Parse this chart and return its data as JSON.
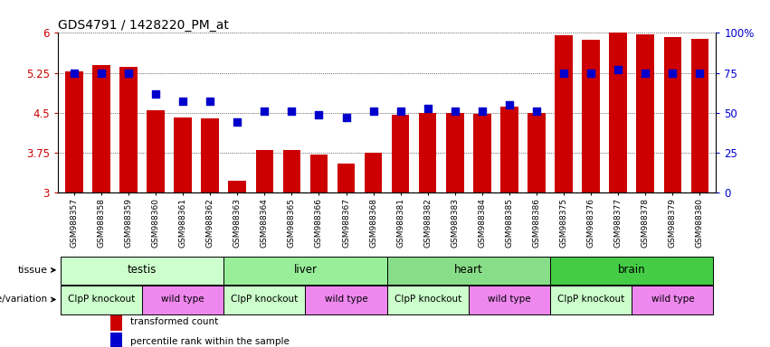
{
  "title": "GDS4791 / 1428220_PM_at",
  "samples": [
    "GSM988357",
    "GSM988358",
    "GSM988359",
    "GSM988360",
    "GSM988361",
    "GSM988362",
    "GSM988363",
    "GSM988364",
    "GSM988365",
    "GSM988366",
    "GSM988367",
    "GSM988368",
    "GSM988381",
    "GSM988382",
    "GSM988383",
    "GSM988384",
    "GSM988385",
    "GSM988386",
    "GSM988375",
    "GSM988376",
    "GSM988377",
    "GSM988378",
    "GSM988379",
    "GSM988380"
  ],
  "bar_values": [
    5.27,
    5.4,
    5.37,
    4.55,
    4.42,
    4.4,
    3.22,
    3.8,
    3.8,
    3.72,
    3.55,
    3.75,
    4.47,
    4.5,
    4.5,
    4.48,
    4.62,
    4.5,
    5.95,
    5.87,
    6.02,
    5.98,
    5.92,
    5.89
  ],
  "dot_values_pct": [
    75,
    75,
    75,
    62,
    57,
    57,
    44,
    51,
    51,
    49,
    47,
    51,
    51,
    53,
    51,
    51,
    55,
    51,
    75,
    75,
    77,
    75,
    75,
    75
  ],
  "bar_color": "#cc0000",
  "dot_color": "#0000cc",
  "ylim_left": [
    3.0,
    6.0
  ],
  "yticks_left": [
    3.0,
    3.75,
    4.5,
    5.25,
    6.0
  ],
  "ytick_labels_left": [
    "3",
    "3.75",
    "4.5",
    "5.25",
    "6"
  ],
  "ylim_right": [
    0,
    100
  ],
  "yticks_right": [
    0,
    25,
    50,
    75,
    100
  ],
  "ytick_labels_right": [
    "0",
    "25",
    "50",
    "75",
    "100%"
  ],
  "tissues": [
    {
      "label": "testis",
      "start": 0,
      "end": 5,
      "color": "#ccffcc"
    },
    {
      "label": "liver",
      "start": 6,
      "end": 11,
      "color": "#99ee99"
    },
    {
      "label": "heart",
      "start": 12,
      "end": 17,
      "color": "#88dd88"
    },
    {
      "label": "brain",
      "start": 18,
      "end": 23,
      "color": "#44cc44"
    }
  ],
  "genotypes": [
    {
      "label": "ClpP knockout",
      "start": 0,
      "end": 2,
      "color": "#ccffcc"
    },
    {
      "label": "wild type",
      "start": 3,
      "end": 5,
      "color": "#ee88ee"
    },
    {
      "label": "ClpP knockout",
      "start": 6,
      "end": 8,
      "color": "#ccffcc"
    },
    {
      "label": "wild type",
      "start": 9,
      "end": 11,
      "color": "#ee88ee"
    },
    {
      "label": "ClpP knockout",
      "start": 12,
      "end": 14,
      "color": "#ccffcc"
    },
    {
      "label": "wild type",
      "start": 15,
      "end": 17,
      "color": "#ee88ee"
    },
    {
      "label": "ClpP knockout",
      "start": 18,
      "end": 20,
      "color": "#ccffcc"
    },
    {
      "label": "wild type",
      "start": 21,
      "end": 23,
      "color": "#ee88ee"
    }
  ],
  "legend_items": [
    {
      "label": "transformed count",
      "color": "#cc0000"
    },
    {
      "label": "percentile rank within the sample",
      "color": "#0000cc"
    }
  ],
  "bg_color": "#f0f0f0"
}
